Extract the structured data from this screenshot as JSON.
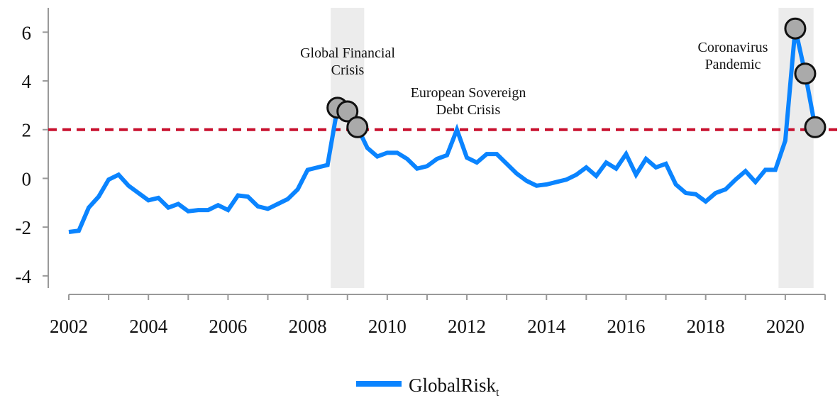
{
  "chart_data": {
    "type": "line",
    "x": [
      2002,
      2002.25,
      2002.5,
      2002.75,
      2003,
      2003.25,
      2003.5,
      2003.75,
      2004,
      2004.25,
      2004.5,
      2004.75,
      2005,
      2005.25,
      2005.5,
      2005.75,
      2006,
      2006.25,
      2006.5,
      2006.75,
      2007,
      2007.25,
      2007.5,
      2007.75,
      2008,
      2008.25,
      2008.5,
      2008.75,
      2009,
      2009.25,
      2009.5,
      2009.75,
      2010,
      2010.25,
      2010.5,
      2010.75,
      2011,
      2011.25,
      2011.5,
      2011.75,
      2012,
      2012.25,
      2012.5,
      2012.75,
      2013,
      2013.25,
      2013.5,
      2013.75,
      2014,
      2014.25,
      2014.5,
      2014.75,
      2015,
      2015.25,
      2015.5,
      2015.75,
      2016,
      2016.25,
      2016.5,
      2016.75,
      2017,
      2017.25,
      2017.5,
      2017.75,
      2018,
      2018.25,
      2018.5,
      2018.75,
      2019,
      2019.25,
      2019.5,
      2019.75,
      2020,
      2020.25,
      2020.5,
      2020.75
    ],
    "series": [
      {
        "name": "GlobalRisk",
        "subscript": "t",
        "color": "#0a84ff",
        "values": [
          -2.2,
          -2.15,
          -1.2,
          -0.75,
          -0.05,
          0.15,
          -0.3,
          -0.6,
          -0.9,
          -0.8,
          -1.2,
          -1.05,
          -1.35,
          -1.3,
          -1.3,
          -1.1,
          -1.3,
          -0.7,
          -0.75,
          -1.15,
          -1.25,
          -1.05,
          -0.85,
          -0.45,
          0.35,
          0.45,
          0.55,
          2.9,
          2.75,
          2.1,
          1.25,
          0.9,
          1.05,
          1.05,
          0.8,
          0.4,
          0.5,
          0.8,
          0.95,
          2.0,
          0.85,
          0.65,
          1.0,
          1.0,
          0.6,
          0.2,
          -0.1,
          -0.3,
          -0.25,
          -0.15,
          -0.05,
          0.15,
          0.45,
          0.1,
          0.65,
          0.4,
          1.0,
          0.15,
          0.8,
          0.45,
          0.6,
          -0.25,
          -0.6,
          -0.65,
          -0.95,
          -0.6,
          -0.45,
          -0.05,
          0.3,
          -0.15,
          0.35,
          0.35,
          1.55,
          6.15,
          4.3,
          2.1
        ]
      }
    ],
    "marker_indices": [
      27,
      28,
      29,
      73,
      74,
      75
    ],
    "reference_line": {
      "value": 2,
      "color": "#c8102e"
    },
    "shaded_ranges": [
      [
        2008.58,
        2009.42
      ],
      [
        2019.83,
        2020.71
      ]
    ],
    "annotations": [
      [
        "Global Financial",
        "Crisis"
      ],
      [
        "European Sovereign",
        "Debt Crisis"
      ],
      [
        "Coronavirus",
        "Pandemic"
      ]
    ],
    "xlim": [
      2002,
      2021
    ],
    "xticks": [
      2002,
      2004,
      2006,
      2008,
      2010,
      2012,
      2014,
      2016,
      2018,
      2020
    ],
    "xminor_ticks": [
      2003,
      2005,
      2007,
      2009,
      2011,
      2013,
      2015,
      2017,
      2019,
      2021
    ],
    "ylim": [
      -4.5,
      7
    ],
    "yticks": [
      -4,
      -2,
      0,
      2,
      4,
      6
    ]
  }
}
